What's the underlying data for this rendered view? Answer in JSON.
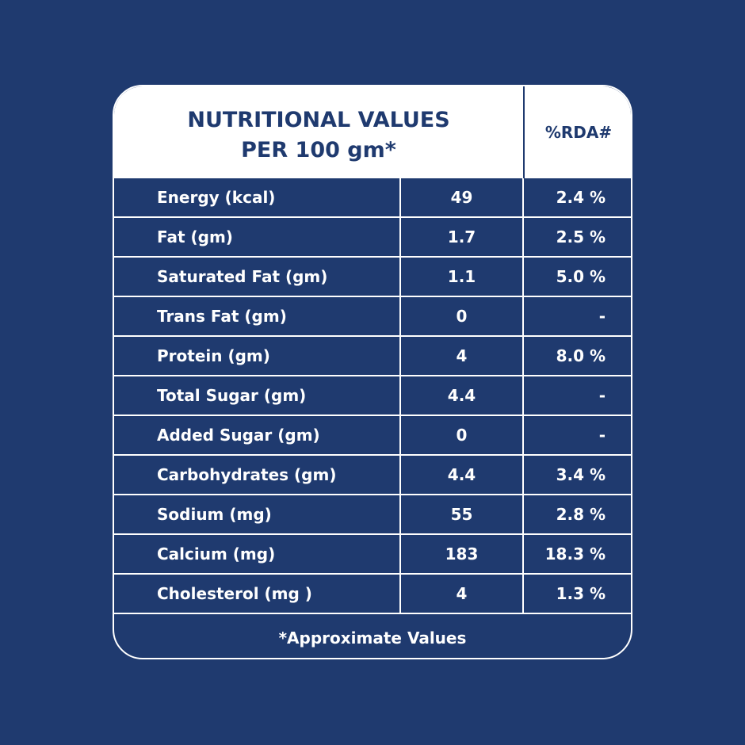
{
  "header": {
    "title_line1": "NUTRITIONAL VALUES",
    "title_line2": "PER 100 gm*",
    "rda_label": "%RDA#"
  },
  "rows": [
    {
      "name": "Energy (kcal)",
      "value": "49",
      "rda": "2.4 %"
    },
    {
      "name": "Fat (gm)",
      "value": "1.7",
      "rda": "2.5 %"
    },
    {
      "name": "Saturated Fat (gm)",
      "value": "1.1",
      "rda": "5.0 %"
    },
    {
      "name": "Trans Fat (gm)",
      "value": "0",
      "rda": "-"
    },
    {
      "name": "Protein (gm)",
      "value": "4",
      "rda": "8.0 %"
    },
    {
      "name": "Total Sugar (gm)",
      "value": "4.4",
      "rda": "-"
    },
    {
      "name": "Added Sugar (gm)",
      "value": "0",
      "rda": "-"
    },
    {
      "name": "Carbohydrates (gm)",
      "value": "4.4",
      "rda": "3.4 %"
    },
    {
      "name": "Sodium (mg)",
      "value": "55",
      "rda": "2.8 %"
    },
    {
      "name": "Calcium (mg)",
      "value": "183",
      "rda": "18.3 %"
    },
    {
      "name": "Cholesterol (mg )",
      "value": "4",
      "rda": "1.3 %"
    }
  ],
  "footer": {
    "note": "*Approximate Values"
  },
  "colors": {
    "background": "#1f3a6f",
    "header_bg": "#ffffff",
    "text": "#ffffff"
  }
}
